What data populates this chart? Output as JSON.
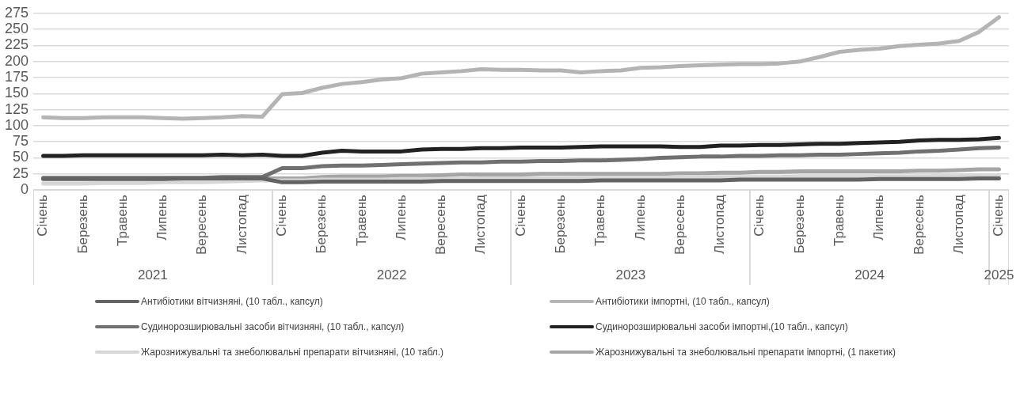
{
  "chart_data": {
    "type": "line",
    "categories": [
      "Січень",
      null,
      "Березень",
      null,
      "Травень",
      null,
      "Липень",
      null,
      "Вересень",
      null,
      "Листопад",
      null,
      "Січень",
      null,
      "Березень",
      null,
      "Травень",
      null,
      "Липень",
      null,
      "Вересень",
      null,
      "Листопад",
      null,
      "Січень",
      null,
      "Березень",
      null,
      "Травень",
      null,
      "Липень",
      null,
      "Вересень",
      null,
      "Листопад",
      null,
      "Січень",
      null,
      "Березень",
      null,
      "Травень",
      null,
      "Липень",
      null,
      "Вересень",
      null,
      "Листопад",
      null,
      "Січень"
    ],
    "series": [
      {
        "name": "Антибіотики вітчизняні, (10 табл., капсул)",
        "color": "#636363",
        "values": [
          17,
          17,
          17,
          17,
          17,
          17,
          17,
          18,
          18,
          18,
          18,
          18,
          12,
          12,
          13,
          13,
          13,
          13,
          13,
          13,
          14,
          14,
          14,
          14,
          14,
          14,
          14,
          14,
          15,
          15,
          15,
          15,
          15,
          15,
          15,
          16,
          16,
          16,
          16,
          16,
          16,
          16,
          17,
          17,
          17,
          17,
          17,
          18,
          18
        ]
      },
      {
        "name": "Антибіотики імпортні, (10 табл., капсул)",
        "color": "#b4b4b4",
        "values": [
          113,
          112,
          112,
          113,
          113,
          113,
          112,
          111,
          112,
          113,
          115,
          114,
          149,
          151,
          159,
          165,
          168,
          172,
          174,
          181,
          183,
          185,
          188,
          187,
          187,
          186,
          186,
          183,
          185,
          186,
          190,
          191,
          193,
          194,
          195,
          196,
          196,
          197,
          200,
          207,
          215,
          218,
          220,
          224,
          226,
          228,
          232,
          246,
          269
        ]
      },
      {
        "name": "Судинорозширювальні засоби вітчизняні, (10 табл., капсул)",
        "color": "#707070",
        "values": [
          19,
          19,
          19,
          19,
          19,
          19,
          19,
          19,
          19,
          20,
          20,
          20,
          34,
          34,
          37,
          38,
          38,
          39,
          40,
          41,
          42,
          43,
          43,
          44,
          44,
          45,
          45,
          46,
          46,
          47,
          48,
          50,
          51,
          52,
          52,
          53,
          53,
          54,
          54,
          55,
          55,
          56,
          57,
          58,
          60,
          61,
          63,
          65,
          66
        ]
      },
      {
        "name": "Судинорозширювальні засоби імпортні,(10 табл., капсул)",
        "color": "#222222",
        "values": [
          53,
          53,
          54,
          54,
          54,
          54,
          54,
          54,
          54,
          55,
          54,
          55,
          53,
          53,
          58,
          61,
          60,
          60,
          60,
          63,
          64,
          64,
          65,
          65,
          66,
          66,
          66,
          67,
          68,
          68,
          68,
          68,
          67,
          67,
          69,
          69,
          70,
          70,
          71,
          72,
          72,
          73,
          74,
          75,
          77,
          78,
          78,
          79,
          81
        ]
      },
      {
        "name": "Жарознижувальні та знеболювальні препарати вітчизняні, (10 табл.)",
        "color": "#d6d6d6",
        "values": [
          10,
          10,
          10,
          11,
          11,
          11,
          12,
          12,
          12,
          13,
          14,
          15,
          15,
          15,
          16,
          16,
          16,
          16,
          17,
          17,
          17,
          17,
          18,
          18,
          18,
          18,
          18,
          19,
          19,
          19,
          19,
          19,
          20,
          20,
          20,
          20,
          20,
          20,
          21,
          21,
          21,
          21,
          21,
          21,
          21,
          22,
          22,
          22,
          22
        ]
      },
      {
        "name": "Жарознижувальні та знеболювальні препарати імпортні, (1 пакетик)",
        "color": "#a5a5a5",
        "values": [
          18,
          18,
          18,
          18,
          18,
          18,
          18,
          18,
          18,
          18,
          18,
          18,
          18,
          18,
          20,
          21,
          21,
          21,
          22,
          22,
          23,
          24,
          24,
          24,
          24,
          25,
          25,
          25,
          25,
          25,
          25,
          25,
          26,
          26,
          27,
          27,
          28,
          28,
          29,
          29,
          29,
          29,
          29,
          29,
          30,
          30,
          31,
          32,
          32
        ]
      }
    ],
    "ylim": [
      0,
      275
    ],
    "yticks": [
      0,
      25,
      50,
      75,
      100,
      125,
      150,
      175,
      200,
      225,
      250,
      275
    ],
    "grid": "y",
    "legend": "bottom",
    "marker": "none",
    "line_style": "solid",
    "annotations": [
      "2021",
      "2022",
      "2023",
      "2024",
      "2025"
    ]
  }
}
